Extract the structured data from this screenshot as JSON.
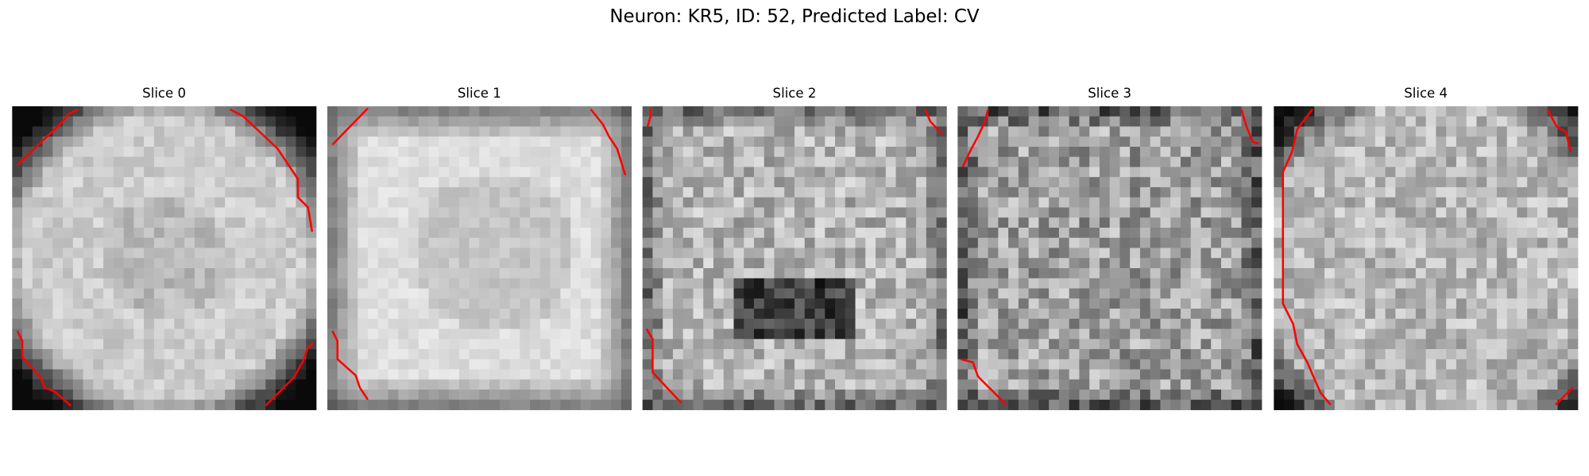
{
  "title": "Neuron: KR5, ID: 52, Predicted Label: CV",
  "panels": [
    {
      "title": "Slice 0"
    },
    {
      "title": "Slice 1"
    },
    {
      "title": "Slice 2"
    },
    {
      "title": "Slice 3"
    },
    {
      "title": "Slice 4"
    }
  ]
}
